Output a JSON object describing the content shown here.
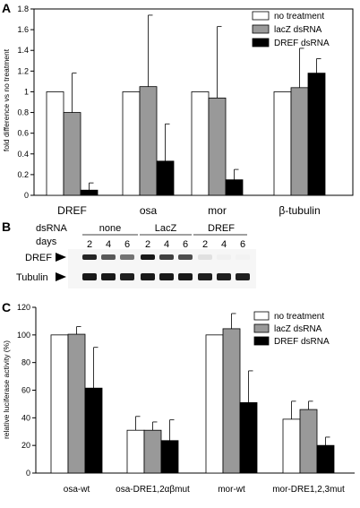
{
  "panel_a": {
    "letter": "A",
    "ylabel": "fold difference vs no treatment",
    "ylim": [
      0,
      1.8
    ],
    "yticks": [
      "0",
      "0.2",
      "0.4",
      "0.6",
      "0.8",
      "1",
      "1.2",
      "1.4",
      "1.6",
      "1.8"
    ],
    "legend": [
      "no treatment",
      "lacZ dsRNA",
      "DREF dsRNA"
    ]
  },
  "panel_b": {
    "letter": "B",
    "dsrna_label": "dsRNA",
    "days_label": "days",
    "groups": [
      "none",
      "LacZ",
      "DREF"
    ],
    "days": [
      "2",
      "4",
      "6",
      "2",
      "4",
      "6",
      "2",
      "4",
      "6"
    ],
    "row_labels": [
      "DREF",
      "Tubulin"
    ],
    "dref_intensity": [
      0.85,
      0.65,
      0.55,
      0.9,
      0.75,
      0.7,
      0.12,
      0.06,
      0.05
    ],
    "tubulin_intensity": [
      0.9,
      0.9,
      0.88,
      0.9,
      0.9,
      0.9,
      0.88,
      0.88,
      0.88
    ]
  },
  "panel_c": {
    "letter": "C",
    "ylabel": "relative luciferase activity (%)",
    "ylim": [
      0,
      120
    ],
    "yticks": [
      "0",
      "20",
      "40",
      "60",
      "80",
      "100",
      "120"
    ],
    "legend": [
      "no treatment",
      "lacZ dsRNA",
      "DREF dsRNA"
    ]
  },
  "colors": {
    "no_treatment": "#ffffff",
    "lacz": "#999999",
    "dref": "#000000"
  },
  "chart_data": [
    {
      "type": "bar",
      "ylabel": "fold difference vs no treatment",
      "ylim": [
        0,
        1.8
      ],
      "legend_position": "top-right",
      "categories": [
        "DREF",
        "osa",
        "mor",
        "β-tubulin"
      ],
      "series": [
        {
          "name": "no treatment",
          "values": [
            1.0,
            1.0,
            1.0,
            1.0
          ],
          "error": [
            0,
            0,
            0,
            0
          ]
        },
        {
          "name": "lacZ dsRNA",
          "values": [
            0.8,
            1.05,
            0.94,
            1.04
          ],
          "error": [
            0.38,
            0.69,
            0.69,
            0.38
          ]
        },
        {
          "name": "DREF dsRNA",
          "values": [
            0.05,
            0.33,
            0.15,
            1.18
          ],
          "error": [
            0.07,
            0.36,
            0.1,
            0.14
          ]
        }
      ]
    },
    {
      "type": "bar",
      "ylabel": "relative luciferase activity (%)",
      "ylim": [
        0,
        120
      ],
      "legend_position": "top-right",
      "categories": [
        "osa-wt",
        "osa-DRE1,2αβmut",
        "mor-wt",
        "mor-DRE1,2,3mut"
      ],
      "series": [
        {
          "name": "no treatment",
          "values": [
            100,
            31,
            100,
            39
          ],
          "error": [
            0,
            10,
            0,
            13
          ]
        },
        {
          "name": "lacZ dsRNA",
          "values": [
            100.5,
            31,
            104.5,
            46
          ],
          "error": [
            5.5,
            6,
            11,
            6
          ]
        },
        {
          "name": "DREF dsRNA",
          "values": [
            61.5,
            23.5,
            51,
            20
          ],
          "error": [
            29.5,
            15,
            23,
            6
          ]
        }
      ]
    }
  ]
}
